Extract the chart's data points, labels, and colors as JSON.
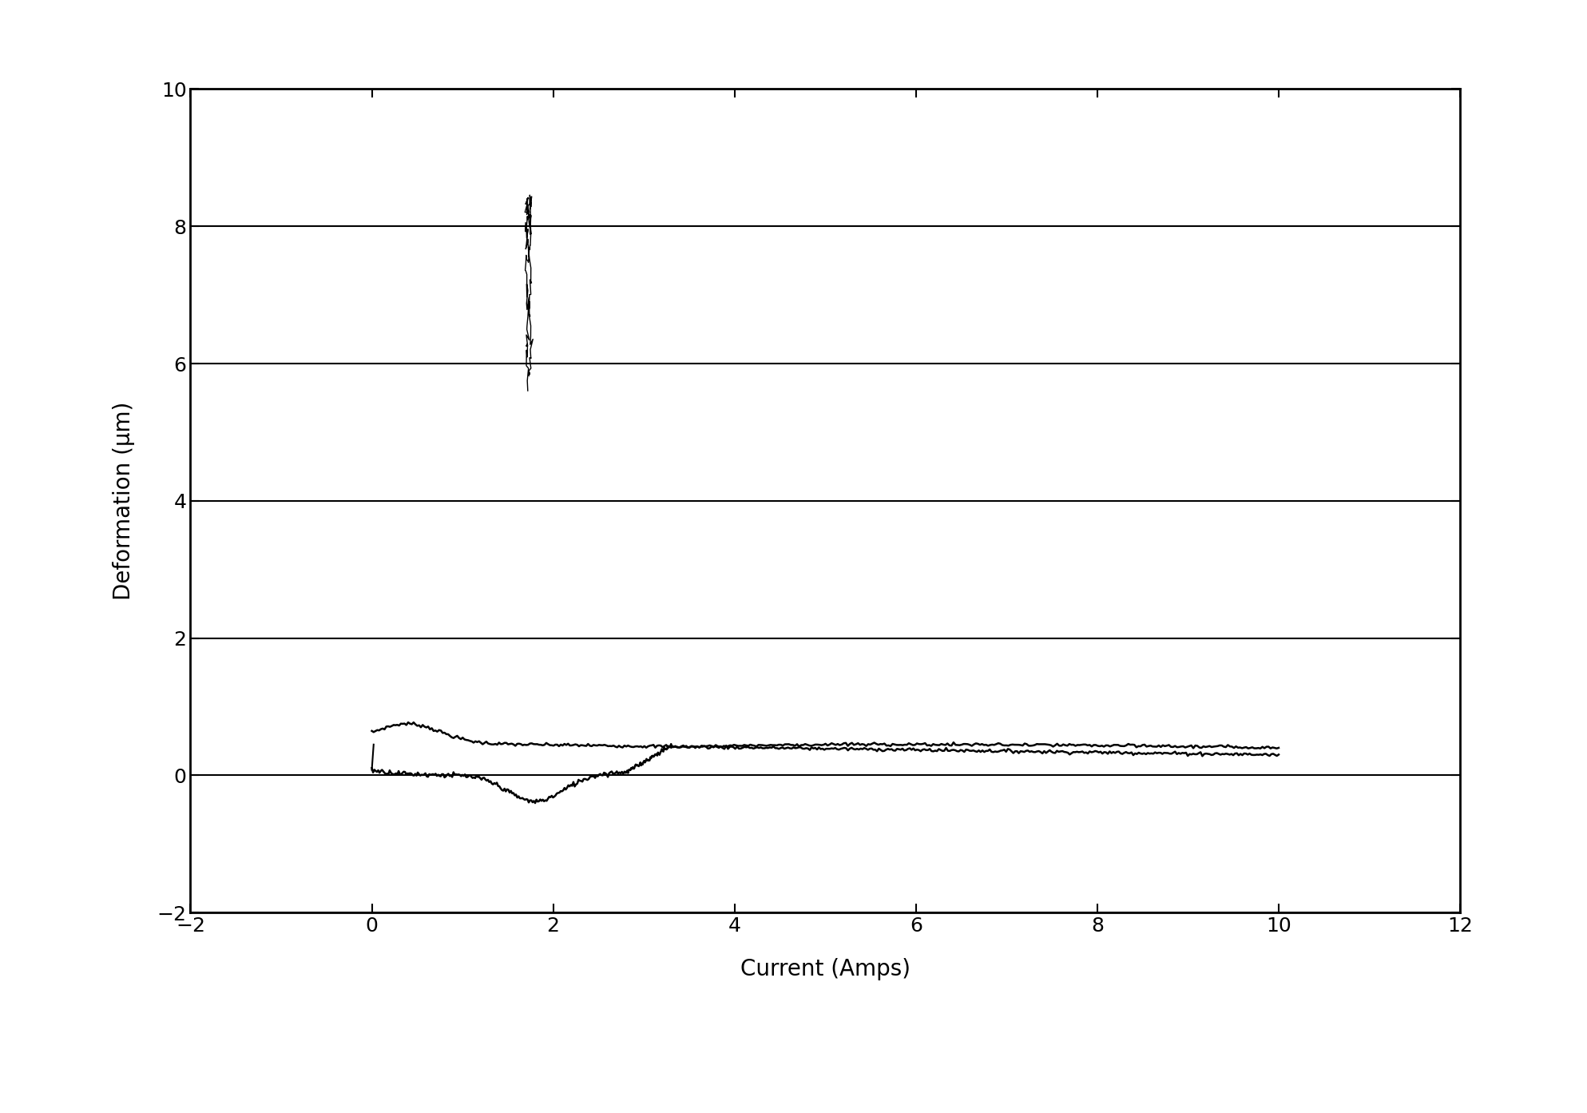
{
  "xlabel": "Current (Amps)",
  "ylabel": "Deformation (μm)",
  "xlim": [
    -2,
    12
  ],
  "ylim": [
    -2,
    10
  ],
  "xticks": [
    -2,
    0,
    2,
    4,
    6,
    8,
    10,
    12
  ],
  "yticks": [
    -2,
    0,
    2,
    4,
    6,
    8,
    10
  ],
  "background_color": "#ffffff",
  "line_color": "#000000",
  "xlabel_fontsize": 20,
  "ylabel_fontsize": 20,
  "tick_fontsize": 18,
  "grid_color": "#000000",
  "grid_linewidth": 1.5,
  "spine_linewidth": 2.0
}
